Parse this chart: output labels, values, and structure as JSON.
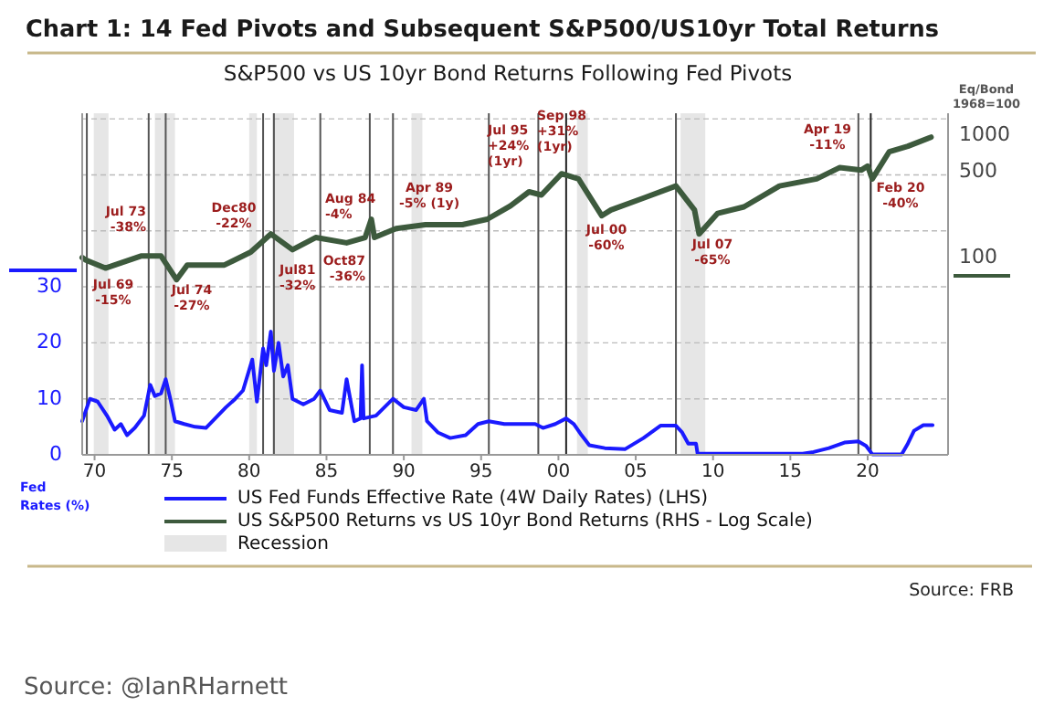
{
  "chart_data": {
    "type": "line",
    "title": "Chart 1: 14 Fed Pivots and Subsequent S&P500/US10yr Total Returns",
    "subtitle": "S&P500 vs US 10yr Bond Returns Following Fed Pivots",
    "ylabel": "Fed\nRates (%)",
    "y2label": "Eq/Bond\n1968=100",
    "xlim": [
      1969.2,
      2025.2
    ],
    "xticks": [
      {
        "value": 1970,
        "label": "70"
      },
      {
        "value": 1975,
        "label": "75"
      },
      {
        "value": 1980,
        "label": "80"
      },
      {
        "value": 1985,
        "label": "85"
      },
      {
        "value": 1990,
        "label": "90"
      },
      {
        "value": 1995,
        "label": "95"
      },
      {
        "value": 2000,
        "label": "00"
      },
      {
        "value": 2005,
        "label": "05"
      },
      {
        "value": 2010,
        "label": "10"
      },
      {
        "value": 2015,
        "label": "15"
      },
      {
        "value": 2020,
        "label": "20"
      }
    ],
    "ylim": [
      0,
      61
    ],
    "yticks": [
      0,
      10,
      20,
      30,
      {
        "value": 40,
        "label": null
      },
      {
        "value": 50,
        "label": null
      },
      {
        "value": 60,
        "label": null
      }
    ],
    "y2lim": [
      2.44,
      1514
    ],
    "y2ticks": [
      100,
      500,
      1000
    ],
    "log": "y2",
    "grid": "y",
    "legend": "bottom",
    "series": [
      {
        "name": "US Fed Funds Effective Rate (4W Daily Rates) (LHS)",
        "color": "#1a1aff",
        "x": [
          1969.2,
          1969.7,
          1970.2,
          1970.8,
          1971.3,
          1971.7,
          1972.1,
          1972.6,
          1973.2,
          1973.6,
          1973.9,
          1974.3,
          1974.6,
          1974.9,
          1975.2,
          1975.8,
          1976.5,
          1977.2,
          1977.8,
          1978.5,
          1979.1,
          1979.6,
          1980.2,
          1980.5,
          1980.9,
          1981.1,
          1981.4,
          1981.6,
          1981.9,
          1982.2,
          1982.5,
          1982.8,
          1983.5,
          1984.2,
          1984.6,
          1985.2,
          1986.0,
          1986.3,
          1986.8,
          1987.2,
          1987.3,
          1987.4,
          1988.2,
          1989.3,
          1990.0,
          1990.8,
          1991.3,
          1991.5,
          1992.2,
          1993.0,
          1994.0,
          1994.8,
          1995.5,
          1996.5,
          1997.5,
          1998.5,
          1999.0,
          1999.8,
          2000.5,
          2001.0,
          2001.5,
          2002.0,
          2003.0,
          2004.3,
          2005.5,
          2006.6,
          2007.6,
          2008.0,
          2008.4,
          2008.9,
          2009.0,
          2015.8,
          2016.5,
          2017.5,
          2018.5,
          2019.4,
          2019.9,
          2020.3,
          2022.2,
          2022.6,
          2023.0,
          2023.6,
          2024.2
        ],
        "values": [
          6,
          10,
          9.5,
          7,
          4.5,
          5.5,
          3.5,
          4.8,
          7,
          12.5,
          10.5,
          11,
          13.5,
          10,
          6,
          5.5,
          5,
          4.8,
          6.5,
          8.5,
          10,
          11.5,
          17,
          9.5,
          19,
          16,
          22,
          15,
          20,
          14,
          16,
          10,
          9,
          10,
          11.5,
          8,
          7.5,
          13.5,
          6,
          6.5,
          16,
          6.5,
          7,
          10,
          8.5,
          8,
          10,
          6,
          4,
          3,
          3.5,
          5.5,
          6,
          5.5,
          5.5,
          5.5,
          4.8,
          5.5,
          6.5,
          5.5,
          3.5,
          1.7,
          1.2,
          1,
          3,
          5.2,
          5.2,
          4,
          2,
          2,
          0.2,
          0.2,
          0.5,
          1.2,
          2.2,
          2.4,
          1.6,
          0.1,
          0.1,
          2,
          4.3,
          5.3,
          5.3
        ]
      },
      {
        "name": "US S&P500 Returns  vs US 10yr Bond Returns (RHS - Log Scale)",
        "color": "#3d5a3d",
        "axis": "y2",
        "x": [
          1969.2,
          1969.4,
          1970.7,
          1973.0,
          1974.3,
          1975.3,
          1976.0,
          1978.4,
          1980.1,
          1981.4,
          1982.8,
          1984.3,
          1986.3,
          1987.5,
          1987.9,
          1988.1,
          1989.5,
          1991.4,
          1993.8,
          1995.4,
          1996.9,
          1998.1,
          1998.9,
          2000.2,
          2001.3,
          2002.8,
          2003.4,
          2005.6,
          2007.6,
          2008.8,
          2009.1,
          2010.3,
          2012.0,
          2014.3,
          2016.7,
          2018.2,
          2019.6,
          2020.0,
          2020.3,
          2021.4,
          2022.6,
          2024.1
        ],
        "values": [
          100,
          96,
          82,
          103,
          103,
          66,
          87,
          87,
          111,
          156,
          116,
          146,
          132,
          146,
          206,
          146,
          173,
          186,
          186,
          206,
          265,
          345,
          325,
          485,
          440,
          220,
          245,
          310,
          385,
          245,
          156,
          230,
          260,
          385,
          440,
          545,
          520,
          560,
          440,
          735,
          814,
          965
        ]
      }
    ],
    "bands": [
      {
        "axis": "x",
        "from": 1969.95,
        "to": 1970.9,
        "label": "Recession",
        "color": "#e6e6e6"
      },
      {
        "axis": "x",
        "from": 1973.9,
        "to": 1975.2,
        "color": "#e6e6e6"
      },
      {
        "axis": "x",
        "from": 1980.0,
        "to": 1980.5,
        "color": "#e6e6e6"
      },
      {
        "axis": "x",
        "from": 1981.5,
        "to": 1982.9,
        "color": "#e6e6e6"
      },
      {
        "axis": "x",
        "from": 1990.5,
        "to": 1991.2,
        "color": "#e6e6e6"
      },
      {
        "axis": "x",
        "from": 2001.2,
        "to": 2001.9,
        "color": "#e6e6e6"
      },
      {
        "axis": "x",
        "from": 2007.9,
        "to": 2009.5,
        "color": "#e6e6e6"
      }
    ],
    "ref_lines": [
      {
        "axis": "x",
        "value": 1969.5,
        "label": "Jul 69\n-15%",
        "color": "#555555"
      },
      {
        "axis": "x",
        "value": 1973.5,
        "label": "Jul 73\n-38%",
        "color": "#555555"
      },
      {
        "axis": "x",
        "value": 1974.6,
        "label": "Jul 74\n-27%",
        "color": "#555555"
      },
      {
        "axis": "x",
        "value": 1980.9,
        "label": "Dec80\n-22%",
        "color": "#555555"
      },
      {
        "axis": "x",
        "value": 1981.6,
        "label": "Jul81\n-32%",
        "color": "#555555"
      },
      {
        "axis": "x",
        "value": 1984.6,
        "label": "Aug 84\n-4%",
        "color": "#555555"
      },
      {
        "axis": "x",
        "value": 1987.8,
        "label": "Oct87\n-36%",
        "color": "#555555"
      },
      {
        "axis": "x",
        "value": 1989.3,
        "label": "Apr 89\n-5% (1y)",
        "color": "#555555"
      },
      {
        "axis": "x",
        "value": 1995.5,
        "label": "Jul 95\n+24%\n(1yr)",
        "color": "#555555"
      },
      {
        "axis": "x",
        "value": 1998.7,
        "label": "Sep 98\n+31%\n(1yr)",
        "color": "#555555"
      },
      {
        "axis": "x",
        "value": 2000.5,
        "label": "Jul 00\n-60%",
        "color": "#222222"
      },
      {
        "axis": "x",
        "value": 2007.6,
        "label": "Jul 07\n-65%",
        "color": "#555555"
      },
      {
        "axis": "x",
        "value": 2019.4,
        "label": "Apr 19\n-11%",
        "color": "#555555"
      },
      {
        "axis": "x",
        "value": 2020.2,
        "label": "Feb 20\n-40%",
        "color": "#222222"
      }
    ],
    "annotations": [
      "Source: FRB",
      "Source:  @IanRHarnett"
    ]
  }
}
